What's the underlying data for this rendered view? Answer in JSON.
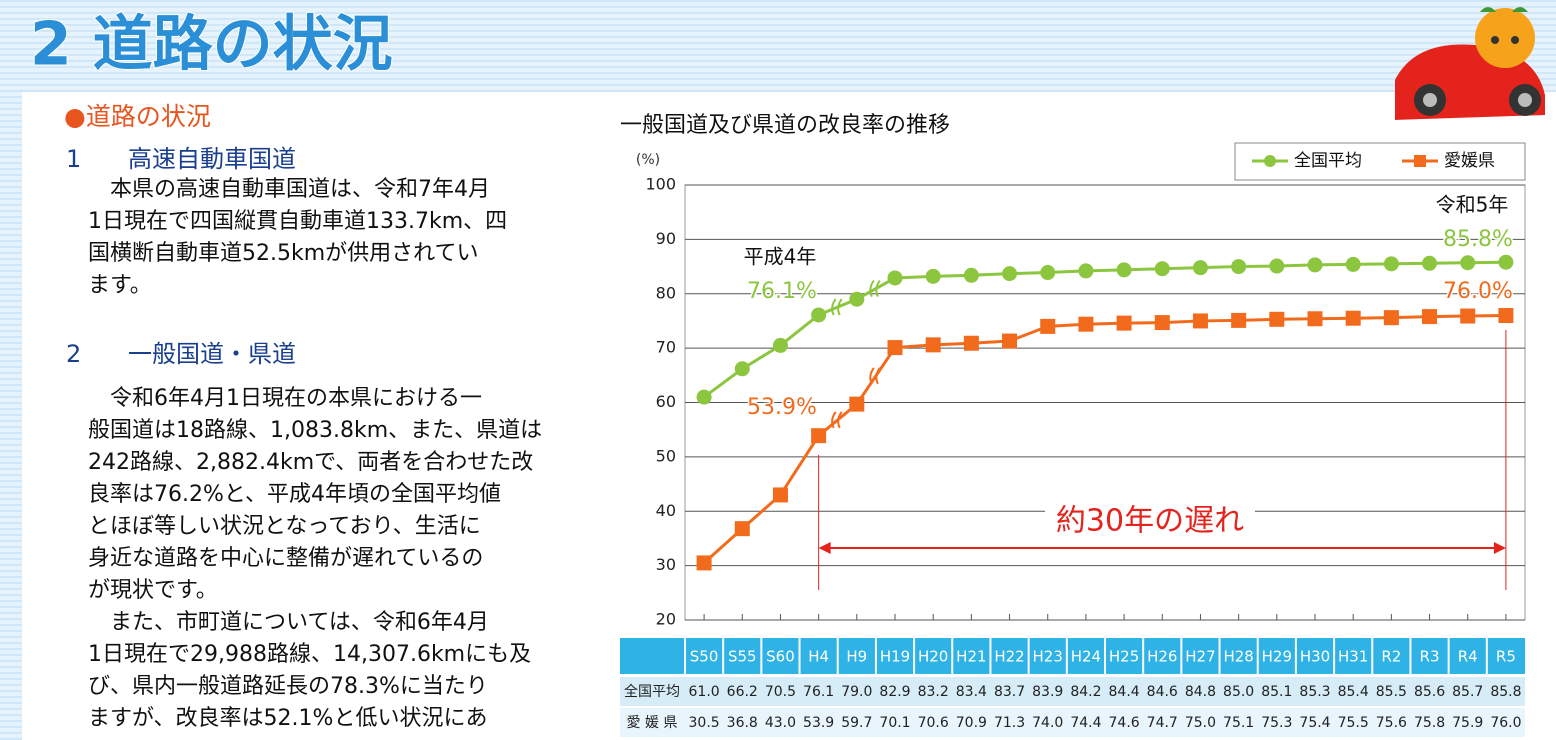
{
  "header": {
    "title": "2 道路の状況"
  },
  "section_title": "●道路の状況",
  "subsections": [
    {
      "number": "1",
      "title": "高速自動車国道",
      "lines": [
        "　本県の高速自動車国道は、令和7年4月",
        "1日現在で四国縦貫自動車道133.7km、四",
        "国横断自動車道52.5kmが供用されてい",
        "ます。"
      ]
    },
    {
      "number": "2",
      "title": "一般国道・県道",
      "lines": [
        "　令和6年4月1日現在の本県における一",
        "般国道は18路線、1,083.8km、また、県道は",
        "242路線、2,882.4kmで、両者を合わせた改",
        "良率は76.2%と、平成4年頃の全国平均値",
        "とほぼ等しい状況となっており、生活に",
        "身近な道路を中心に整備が遅れているの",
        "が現状です。",
        "　また、市町道については、令和6年4月",
        "1日現在で29,988路線、14,307.6kmにも及",
        "び、県内一般道路延長の78.3%に当たり",
        "ますが、改良率は52.1%と低い状況にあ"
      ]
    }
  ],
  "chart_data": {
    "type": "line",
    "title": "一般国道及び県道の改良率の推移",
    "y_unit": "(%)",
    "categories": [
      "S50",
      "S55",
      "S60",
      "H4",
      "H9",
      "H19",
      "H20",
      "H21",
      "H22",
      "H23",
      "H24",
      "H25",
      "H26",
      "H27",
      "H28",
      "H29",
      "H30",
      "H31",
      "R2",
      "R3",
      "R4",
      "R5"
    ],
    "series": [
      {
        "name": "全国平均",
        "color": "#8cc63f",
        "marker": "circle",
        "values": [
          61.0,
          66.2,
          70.5,
          76.1,
          79.0,
          82.9,
          83.2,
          83.4,
          83.7,
          83.9,
          84.2,
          84.4,
          84.6,
          84.8,
          85.0,
          85.1,
          85.3,
          85.4,
          85.5,
          85.6,
          85.7,
          85.8
        ],
        "value_labels": [
          "61.0",
          "66.2",
          "70.5",
          "76.1",
          "79.0",
          "82.9",
          "83.2",
          "83.4",
          "83.7",
          "83.9",
          "84.2",
          "84.4",
          "84.6",
          "84.8",
          "85.0",
          "85.1",
          "85.3",
          "85.4",
          "85.5",
          "85.6",
          "85.7",
          "85.8"
        ]
      },
      {
        "name": "愛媛県",
        "color": "#f26b1d",
        "marker": "square",
        "values": [
          30.5,
          36.8,
          43.0,
          53.9,
          59.7,
          70.1,
          70.6,
          70.9,
          71.3,
          74.0,
          74.4,
          74.6,
          74.7,
          75.0,
          75.1,
          75.3,
          75.4,
          75.5,
          75.6,
          75.8,
          75.9,
          76.0
        ],
        "value_labels": [
          "30.5",
          "36.8",
          "43.0",
          "53.9",
          "59.7",
          "70.1",
          "70.6",
          "70.9",
          "71.3",
          "74.0",
          "74.4",
          "74.6",
          "74.7",
          "75.0",
          "75.1",
          "75.3",
          "75.4",
          "75.5",
          "75.6",
          "75.8",
          "75.9",
          "76.0"
        ]
      }
    ],
    "table_row_labels": [
      "全国平均",
      "愛 媛 県"
    ],
    "annotations": [
      "平成4年",
      "76.1%",
      "53.9%",
      "令和5年",
      "85.8%",
      "76.0%",
      "約30年の遅れ"
    ],
    "ylim": [
      20,
      100
    ],
    "yticks": [
      20,
      30,
      40,
      50,
      60,
      70,
      80,
      90,
      100
    ],
    "grid": true,
    "legend": "top-right"
  }
}
